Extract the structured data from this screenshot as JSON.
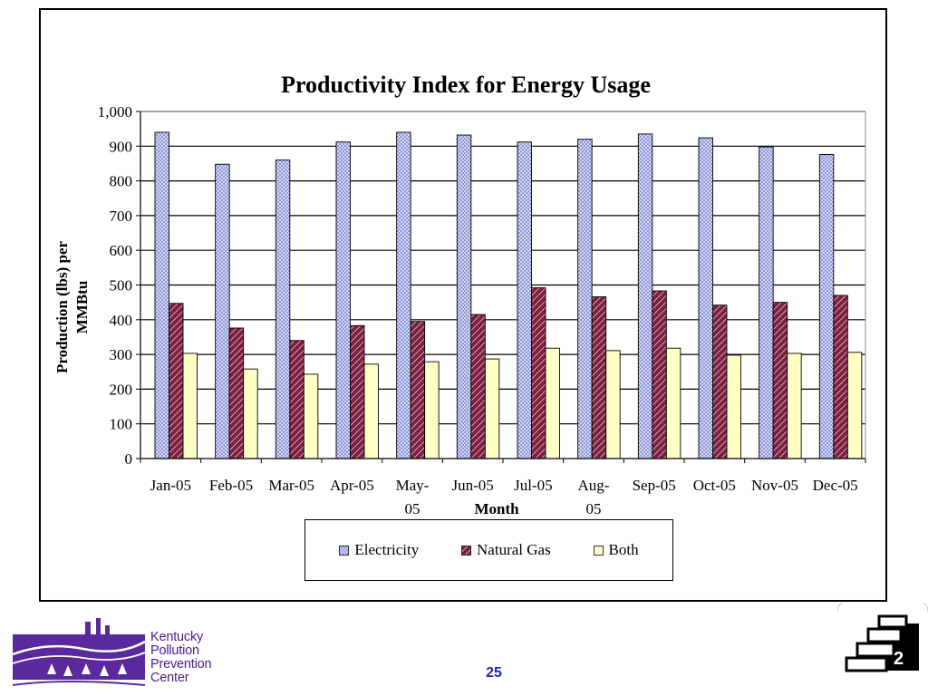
{
  "page_number": "25",
  "corner_number": "2",
  "logo": {
    "lines": [
      "Kentucky",
      "Pollution",
      "Prevention",
      "Center"
    ],
    "color": "#4a1c8c"
  },
  "colors": {
    "electricity_fill": "#c8cdf0",
    "natural_gas_fill": "#7a1f3d",
    "both_fill": "#ffffc6"
  },
  "chart_data": {
    "type": "bar",
    "title": "Productivity Index for Energy Usage",
    "xlabel": "Month",
    "ylabel": "Production (lbs) per MMBtu",
    "ylim": [
      0,
      1000
    ],
    "yticks": [
      "0",
      "100",
      "200",
      "300",
      "400",
      "500",
      "600",
      "700",
      "800",
      "900",
      "1,000"
    ],
    "grid": true,
    "legend_position": "bottom",
    "categories": [
      "Jan-05",
      "Feb-05",
      "Mar-05",
      "Apr-05",
      "May-05",
      "Jun-05",
      "Jul-05",
      "Aug-05",
      "Sep-05",
      "Oct-05",
      "Nov-05",
      "Dec-05"
    ],
    "series": [
      {
        "name": "Electricity",
        "values": [
          940,
          848,
          860,
          912,
          940,
          932,
          912,
          920,
          935,
          924,
          898,
          876
        ]
      },
      {
        "name": "Natural Gas",
        "values": [
          447,
          376,
          340,
          383,
          395,
          415,
          492,
          466,
          483,
          442,
          450,
          470
        ]
      },
      {
        "name": "Both",
        "values": [
          303,
          258,
          243,
          272,
          279,
          287,
          318,
          311,
          318,
          298,
          303,
          306
        ]
      }
    ]
  }
}
